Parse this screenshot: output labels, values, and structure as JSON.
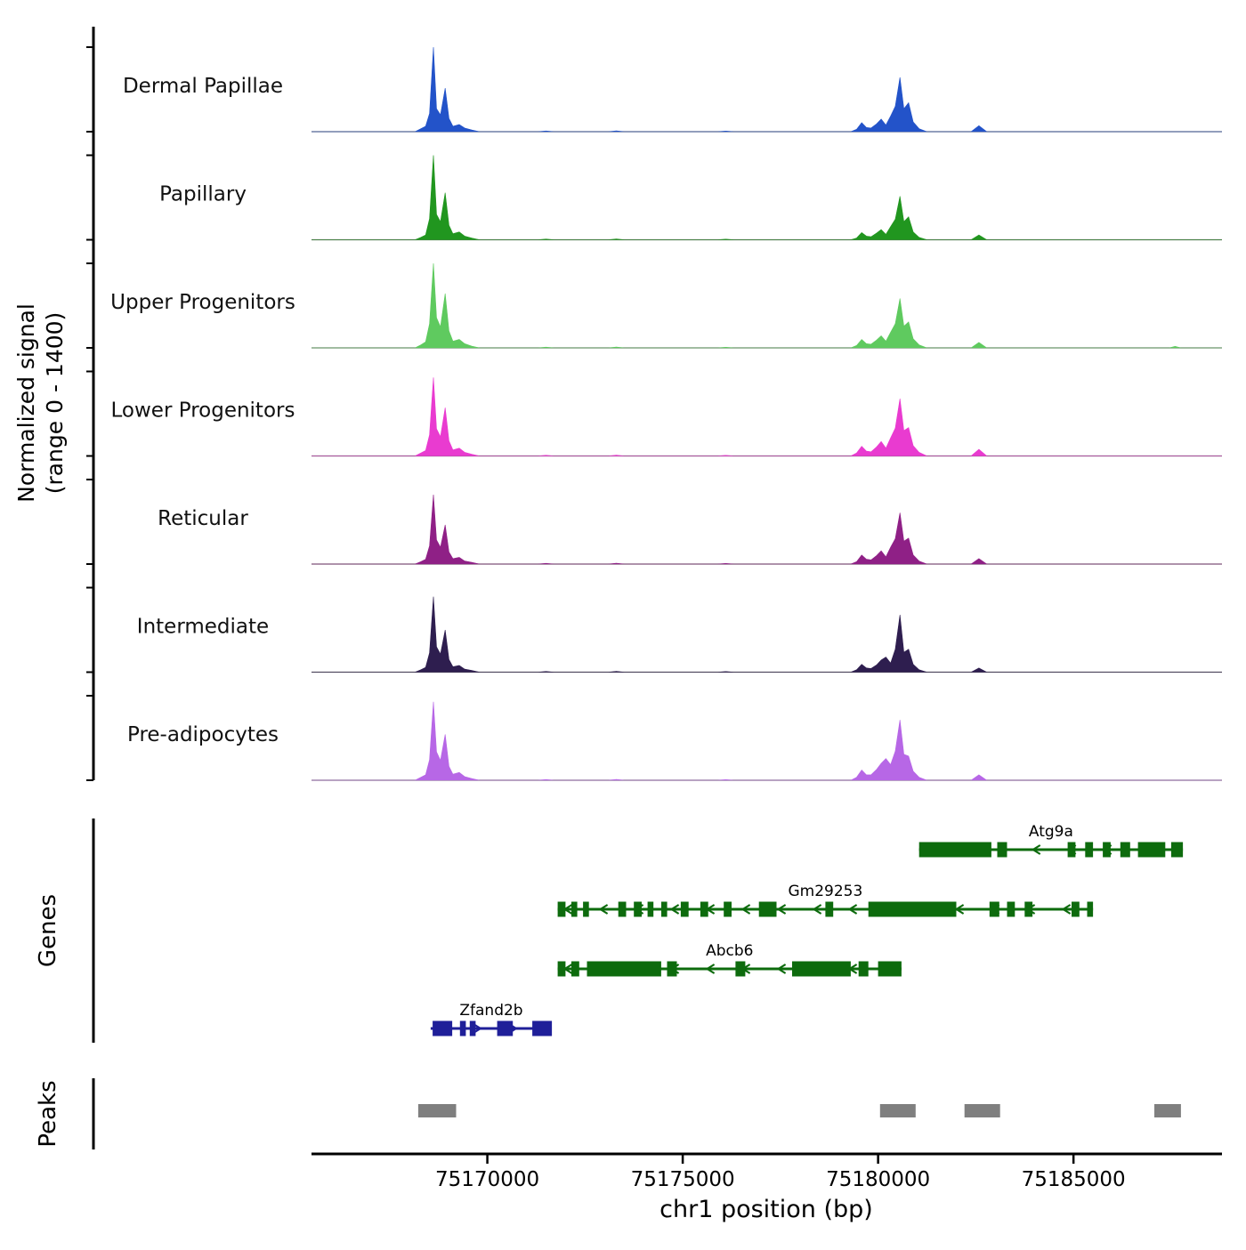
{
  "figure": {
    "background": "#ffffff"
  },
  "axis": {
    "x_label": "chr1 position (bp)",
    "y_label_line1": "Normalized signal",
    "y_label_line2": "(range 0 - 1400)",
    "genes_label": "Genes",
    "peaks_label": "Peaks"
  },
  "chart_data": {
    "type": "area",
    "chromosome": "chr1",
    "x_unit": "bp",
    "x_range": [
      75165500,
      75188800
    ],
    "y_range": [
      0,
      1400
    ],
    "x_ticks": [
      75170000,
      75175000,
      75180000,
      75185000
    ],
    "x_anchors": {
      "a": [
        75168150,
        75168300,
        75168420,
        75168520,
        75168620,
        75168700,
        75168800,
        75168920,
        75169020,
        75169120,
        75169280,
        75169420,
        75169600,
        75169800
      ],
      "b": [
        75179300,
        75179450,
        75179580,
        75179700,
        75179820,
        75179960,
        75180080,
        75180200,
        75180320,
        75180440,
        75180560,
        75180660,
        75180780,
        75180900,
        75181050,
        75181250
      ],
      "c": [
        75182380,
        75182580,
        75182780
      ]
    },
    "noise": [
      [
        75171300,
        0
      ],
      [
        75171500,
        12
      ],
      [
        75171700,
        0
      ],
      [
        75173100,
        0
      ],
      [
        75173300,
        14
      ],
      [
        75173500,
        0
      ],
      [
        75175900,
        0
      ],
      [
        75176100,
        10
      ],
      [
        75176300,
        0
      ]
    ],
    "tracks": [
      {
        "name": "Dermal Papillae",
        "color": "#2353c9",
        "a": [
          0,
          50,
          90,
          300,
          1400,
          380,
          280,
          720,
          220,
          90,
          120,
          60,
          30,
          0
        ],
        "b": [
          0,
          40,
          150,
          70,
          60,
          130,
          210,
          110,
          260,
          420,
          900,
          380,
          480,
          160,
          50,
          0
        ],
        "c": [
          0,
          100,
          0
        ]
      },
      {
        "name": "Papillary",
        "color": "#21961f",
        "a": [
          0,
          40,
          80,
          350,
          1400,
          420,
          300,
          780,
          240,
          100,
          130,
          60,
          30,
          0
        ],
        "b": [
          0,
          30,
          120,
          60,
          50,
          110,
          170,
          90,
          220,
          340,
          720,
          300,
          380,
          130,
          40,
          0
        ],
        "c": [
          0,
          80,
          0
        ]
      },
      {
        "name": "Upper Progenitors",
        "color": "#5fca5f",
        "a": [
          0,
          50,
          100,
          400,
          1400,
          500,
          350,
          900,
          280,
          110,
          140,
          70,
          30,
          0
        ],
        "b": [
          0,
          40,
          140,
          70,
          60,
          130,
          200,
          110,
          260,
          400,
          820,
          360,
          430,
          150,
          50,
          0
        ],
        "c": [
          0,
          90,
          0
        ],
        "extra": [
          [
            75187450,
            0
          ],
          [
            75187600,
            25
          ],
          [
            75187750,
            0
          ]
        ]
      },
      {
        "name": "Lower Progenitors",
        "color": "#e93bd0",
        "a": [
          0,
          50,
          90,
          350,
          1300,
          450,
          320,
          800,
          250,
          100,
          130,
          60,
          30,
          0
        ],
        "b": [
          0,
          50,
          160,
          80,
          70,
          150,
          240,
          130,
          300,
          460,
          950,
          420,
          470,
          170,
          60,
          0
        ],
        "c": [
          0,
          110,
          0
        ]
      },
      {
        "name": "Reticular",
        "color": "#8f2086",
        "a": [
          0,
          40,
          80,
          300,
          1150,
          400,
          280,
          650,
          200,
          90,
          110,
          50,
          30,
          0
        ],
        "b": [
          0,
          40,
          150,
          80,
          70,
          140,
          220,
          120,
          280,
          420,
          850,
          380,
          430,
          150,
          50,
          0
        ],
        "c": [
          0,
          90,
          0
        ]
      },
      {
        "name": "Intermediate",
        "color": "#2e1e4f",
        "a": [
          0,
          40,
          80,
          320,
          1250,
          420,
          300,
          700,
          210,
          90,
          110,
          50,
          30,
          0
        ],
        "b": [
          0,
          40,
          130,
          70,
          60,
          120,
          200,
          250,
          150,
          380,
          950,
          330,
          380,
          130,
          40,
          0
        ],
        "c": [
          0,
          70,
          0
        ]
      },
      {
        "name": "Pre-adipocytes",
        "color": "#b767e6",
        "a": [
          0,
          50,
          90,
          340,
          1300,
          470,
          330,
          760,
          230,
          100,
          130,
          60,
          30,
          0
        ],
        "b": [
          0,
          50,
          170,
          90,
          90,
          180,
          280,
          360,
          260,
          480,
          1000,
          430,
          400,
          150,
          50,
          0
        ],
        "c": [
          0,
          90,
          0
        ]
      }
    ],
    "genes": [
      {
        "name": "Atg9a",
        "color": "#0d6b0d",
        "strand": "-",
        "start": 75181050,
        "end": 75187800,
        "exons": [
          [
            75181050,
            75182900
          ],
          [
            75183050,
            75183300
          ],
          [
            75184850,
            75185050
          ],
          [
            75185300,
            75185500
          ],
          [
            75185750,
            75185950
          ],
          [
            75186200,
            75186450
          ],
          [
            75186650,
            75187350
          ],
          [
            75187500,
            75187800
          ]
        ]
      },
      {
        "name": "Gm29253",
        "color": "#0d6b0d",
        "strand": "-",
        "start": 75171800,
        "end": 75185500,
        "exons": [
          [
            75171800,
            75172000
          ],
          [
            75172150,
            75172300
          ],
          [
            75172450,
            75172600
          ],
          [
            75173350,
            75173550
          ],
          [
            75173750,
            75173950
          ],
          [
            75174100,
            75174250
          ],
          [
            75174450,
            75174600
          ],
          [
            75174950,
            75175150
          ],
          [
            75175450,
            75175650
          ],
          [
            75176050,
            75176250
          ],
          [
            75176950,
            75177400
          ],
          [
            75178650,
            75178850
          ],
          [
            75179750,
            75182000
          ],
          [
            75182850,
            75183100
          ],
          [
            75183300,
            75183500
          ],
          [
            75183750,
            75183950
          ],
          [
            75184950,
            75185150
          ],
          [
            75185350,
            75185500
          ]
        ]
      },
      {
        "name": "Abcb6",
        "color": "#0d6b0d",
        "strand": "-",
        "start": 75171800,
        "end": 75180600,
        "exons": [
          [
            75171800,
            75172000
          ],
          [
            75172150,
            75172350
          ],
          [
            75172550,
            75174450
          ],
          [
            75174600,
            75174850
          ],
          [
            75176350,
            75176600
          ],
          [
            75177800,
            75179300
          ],
          [
            75179500,
            75179750
          ],
          [
            75180000,
            75180600
          ]
        ]
      },
      {
        "name": "Zfand2b",
        "color": "#1f1f99",
        "strand": "+",
        "start": 75168550,
        "end": 75171650,
        "exons": [
          [
            75168600,
            75169100
          ],
          [
            75169300,
            75169450
          ],
          [
            75169550,
            75169700
          ],
          [
            75170250,
            75170650
          ],
          [
            75171150,
            75171650
          ]
        ]
      }
    ],
    "peaks": {
      "color": "#7f7f7f",
      "intervals": [
        [
          75168230,
          75169200
        ],
        [
          75180050,
          75180960
        ],
        [
          75182210,
          75183120
        ],
        [
          75187070,
          75187750
        ]
      ]
    }
  }
}
